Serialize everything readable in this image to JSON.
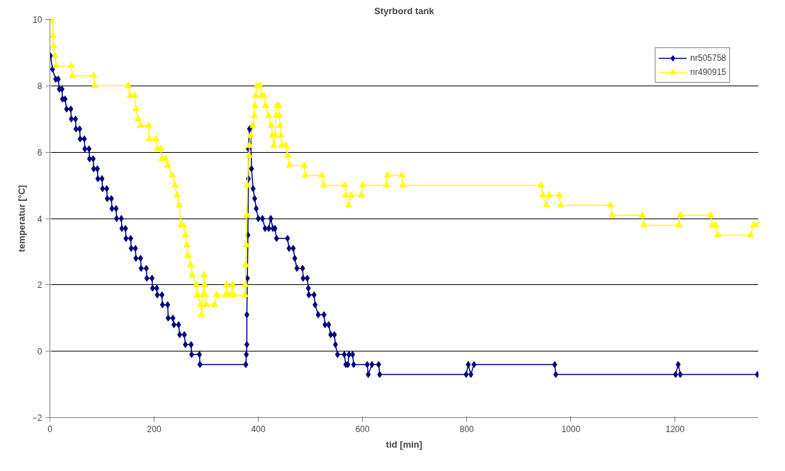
{
  "chart_data": {
    "type": "line",
    "title": "Styrbord tank",
    "xlabel": "tid [min]",
    "ylabel": "temperatur [°C]",
    "xlim": [
      0,
      1360
    ],
    "xticks": [
      0,
      200,
      400,
      600,
      800,
      1000,
      1200
    ],
    "ylim": [
      -2,
      10
    ],
    "yticks": [
      -2,
      0,
      2,
      4,
      6,
      8,
      10
    ],
    "grid": "y",
    "legend": "top right",
    "line_style": "solid",
    "series": [
      {
        "name": "nr505758",
        "color": "#000080",
        "marker": "diamond",
        "x": [
          1,
          5,
          11,
          16,
          18,
          23,
          24,
          29,
          32,
          40,
          41,
          49,
          50,
          57,
          58,
          66,
          67,
          75,
          76,
          83,
          84,
          91,
          92,
          100,
          101,
          109,
          110,
          118,
          119,
          127,
          128,
          137,
          138,
          145,
          146,
          155,
          156,
          164,
          165,
          174,
          175,
          185,
          186,
          196,
          197,
          205,
          206,
          215,
          216,
          226,
          227,
          236,
          238,
          247,
          249,
          258,
          260,
          271,
          272,
          287,
          288,
          376,
          377,
          378,
          378,
          379,
          380,
          381,
          381,
          383,
          385,
          387,
          390,
          393,
          396,
          400,
          408,
          413,
          420,
          424,
          428,
          432,
          435,
          456,
          459,
          467,
          470,
          474,
          485,
          486,
          494,
          496,
          497,
          507,
          509,
          515,
          526,
          528,
          535,
          539,
          546,
          548,
          552,
          565,
          568,
          572,
          574,
          581,
          583,
          609,
          611,
          618,
          631,
          633,
          799,
          803,
          808,
          814,
          969,
          971,
          1201,
          1206,
          1210,
          1358
        ],
        "values": [
          8.9,
          8.5,
          8.2,
          8.2,
          7.9,
          7.9,
          7.6,
          7.6,
          7.3,
          7.3,
          7.0,
          7.0,
          6.7,
          6.7,
          6.4,
          6.4,
          6.1,
          6.1,
          5.8,
          5.8,
          5.5,
          5.5,
          5.2,
          5.2,
          4.9,
          4.9,
          4.6,
          4.6,
          4.3,
          4.3,
          4.0,
          4.0,
          3.7,
          3.7,
          3.4,
          3.4,
          3.1,
          3.1,
          2.8,
          2.8,
          2.5,
          2.5,
          2.2,
          2.2,
          1.9,
          1.9,
          1.7,
          1.7,
          1.4,
          1.4,
          1.0,
          1.0,
          0.8,
          0.8,
          0.5,
          0.5,
          0.2,
          0.2,
          -0.1,
          -0.1,
          -0.4,
          -0.4,
          -0.1,
          0.2,
          1.1,
          2.2,
          3.5,
          5.2,
          6.1,
          6.7,
          6.7,
          5.5,
          4.9,
          4.6,
          4.3,
          4.0,
          4.0,
          3.7,
          3.7,
          4.0,
          3.7,
          3.7,
          3.4,
          3.4,
          3.1,
          3.1,
          2.8,
          2.5,
          2.5,
          2.2,
          2.2,
          1.9,
          1.7,
          1.7,
          1.4,
          1.1,
          1.1,
          0.8,
          0.8,
          0.5,
          0.5,
          0.2,
          -0.1,
          -0.1,
          -0.4,
          -0.4,
          -0.1,
          -0.1,
          -0.4,
          -0.4,
          -0.7,
          -0.4,
          -0.4,
          -0.7,
          -0.7,
          -0.4,
          -0.7,
          -0.4,
          -0.4,
          -0.7,
          -0.7,
          -0.4,
          -0.7,
          -0.7
        ]
      },
      {
        "name": "nr490915",
        "color": "#ffff00",
        "marker": "triangle",
        "x": [
          4,
          6,
          7,
          10,
          12,
          41,
          43,
          84,
          86,
          150,
          154,
          163,
          165,
          169,
          174,
          189,
          191,
          204,
          206,
          213,
          215,
          222,
          226,
          235,
          240,
          244,
          248,
          252,
          256,
          260,
          263,
          265,
          270,
          273,
          281,
          283,
          289,
          291,
          294,
          296,
          297,
          298,
          300,
          316,
          320,
          337,
          339,
          342,
          348,
          350,
          353,
          374,
          375,
          376,
          377,
          378,
          379,
          382,
          383,
          385,
          390,
          392,
          393,
          395,
          398,
          403,
          406,
          411,
          414,
          420,
          425,
          427,
          430,
          432,
          434,
          436,
          439,
          440,
          442,
          443,
          445,
          453,
          456,
          460,
          488,
          490,
          522,
          525,
          566,
          568,
          573,
          578,
          598,
          600,
          646,
          648,
          675,
          677,
          943,
          946,
          953,
          958,
          978,
          980,
          1076,
          1079,
          1137,
          1140,
          1207,
          1210,
          1268,
          1272,
          1278,
          1282,
          1345,
          1351,
          1358
        ],
        "values": [
          10.0,
          9.5,
          9.2,
          8.9,
          8.6,
          8.6,
          8.3,
          8.3,
          8.0,
          8.0,
          7.7,
          7.7,
          7.3,
          7.0,
          6.8,
          6.8,
          6.4,
          6.4,
          6.1,
          6.1,
          5.8,
          5.8,
          5.6,
          5.3,
          5.0,
          4.7,
          4.4,
          3.8,
          3.8,
          3.5,
          3.2,
          2.9,
          2.6,
          2.3,
          2.0,
          1.7,
          1.4,
          1.1,
          1.7,
          2.3,
          2.0,
          1.7,
          1.4,
          1.4,
          1.7,
          1.7,
          2.0,
          1.7,
          1.7,
          2.0,
          1.7,
          1.7,
          2.0,
          2.6,
          3.2,
          4.1,
          5.0,
          5.9,
          6.2,
          6.5,
          6.8,
          7.1,
          7.4,
          7.7,
          8.0,
          8.0,
          7.7,
          7.7,
          7.4,
          7.1,
          6.8,
          6.5,
          6.2,
          6.5,
          7.1,
          7.4,
          7.4,
          7.1,
          6.8,
          6.5,
          6.2,
          6.2,
          5.9,
          5.6,
          5.6,
          5.3,
          5.3,
          5.0,
          5.0,
          4.7,
          4.4,
          4.7,
          4.7,
          5.0,
          5.0,
          5.3,
          5.3,
          5.0,
          5.0,
          4.7,
          4.4,
          4.7,
          4.7,
          4.4,
          4.4,
          4.1,
          4.1,
          3.8,
          3.8,
          4.1,
          4.1,
          3.8,
          3.8,
          3.5,
          3.5,
          3.8,
          3.8
        ]
      }
    ]
  }
}
